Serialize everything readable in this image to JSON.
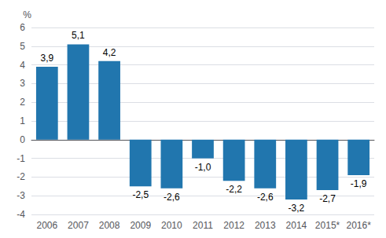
{
  "chart_data": {
    "type": "bar",
    "categories": [
      "2006",
      "2007",
      "2008",
      "2009",
      "2010",
      "2011",
      "2012",
      "2013",
      "2014",
      "2015*",
      "2016*"
    ],
    "values": [
      3.9,
      5.1,
      4.2,
      -2.5,
      -2.6,
      -1.0,
      -2.2,
      -2.6,
      -3.2,
      -2.7,
      -1.9
    ],
    "value_labels": [
      "3,9",
      "5,1",
      "4,2",
      "-2,5",
      "-2,6",
      "-1,0",
      "-2,2",
      "-2,6",
      "-3,2",
      "-2,7",
      "-1,9"
    ],
    "color": "#2176ae",
    "ylabel": "%",
    "ylim": [
      -4,
      6
    ],
    "yticks": [
      -4,
      -3,
      -2,
      -1,
      0,
      1,
      2,
      3,
      4,
      5,
      6
    ],
    "grid": true,
    "data_labels": true
  }
}
